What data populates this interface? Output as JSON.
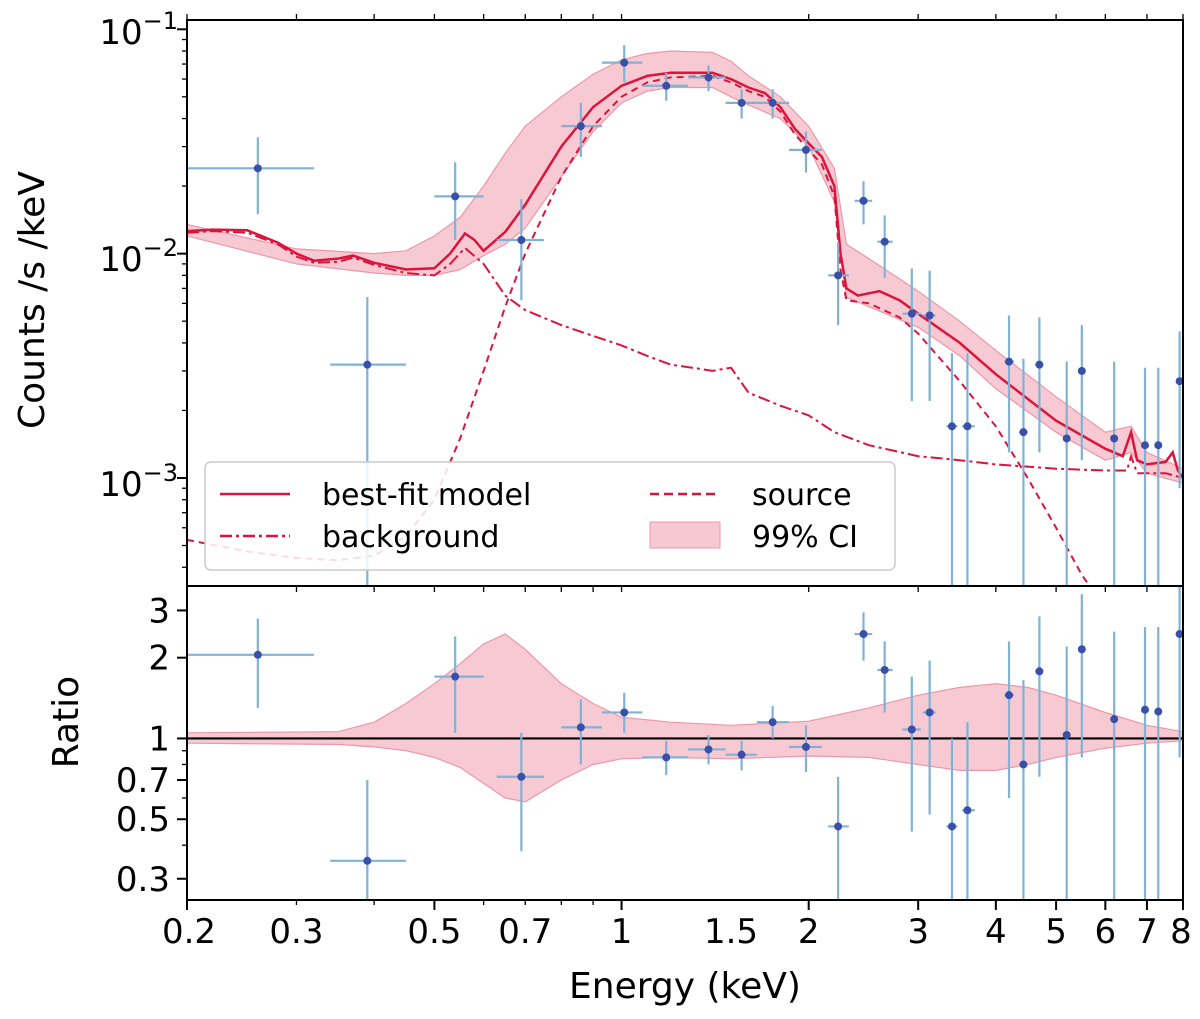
{
  "chart_data": [
    {
      "type": "line",
      "panel": "spectrum",
      "ylabel": "Counts /s /keV",
      "xscale": "log",
      "yscale": "log",
      "xlim": [
        0.2,
        8
      ],
      "ylim": [
        0.00033,
        0.11
      ],
      "y_tick_labels": [
        {
          "value": 0.1,
          "base": "10",
          "exp": "−1"
        },
        {
          "value": 0.01,
          "base": "10",
          "exp": "−2"
        },
        {
          "value": 0.001,
          "base": "10",
          "exp": "−3"
        }
      ],
      "legend": {
        "placement": "lower-left",
        "entries": [
          {
            "label": "best-fit model",
            "style": "solid"
          },
          {
            "label": "source",
            "style": "dashed"
          },
          {
            "label": "background",
            "style": "dashdot"
          },
          {
            "label": "99% CI",
            "style": "band"
          }
        ]
      },
      "colors": {
        "model": "#dc143c",
        "band": "#f4b6c2",
        "points": "#3a4fa8",
        "errorbars": "#7fb2d5"
      },
      "model": [
        [
          0.2,
          0.0126
        ],
        [
          0.22,
          0.0128
        ],
        [
          0.25,
          0.0127
        ],
        [
          0.28,
          0.0112
        ],
        [
          0.3,
          0.01
        ],
        [
          0.32,
          0.0093
        ],
        [
          0.35,
          0.0095
        ],
        [
          0.37,
          0.0098
        ],
        [
          0.4,
          0.0091
        ],
        [
          0.45,
          0.0085
        ],
        [
          0.5,
          0.0086
        ],
        [
          0.53,
          0.01
        ],
        [
          0.56,
          0.0123
        ],
        [
          0.58,
          0.0115
        ],
        [
          0.6,
          0.0103
        ],
        [
          0.65,
          0.0125
        ],
        [
          0.7,
          0.0165
        ],
        [
          0.8,
          0.03
        ],
        [
          0.9,
          0.045
        ],
        [
          1.0,
          0.056
        ],
        [
          1.1,
          0.062
        ],
        [
          1.2,
          0.064
        ],
        [
          1.4,
          0.064
        ],
        [
          1.5,
          0.06
        ],
        [
          1.6,
          0.055
        ],
        [
          1.7,
          0.052
        ],
        [
          1.8,
          0.045
        ],
        [
          1.9,
          0.036
        ],
        [
          2.0,
          0.031
        ],
        [
          2.1,
          0.027
        ],
        [
          2.2,
          0.02
        ],
        [
          2.25,
          0.01
        ],
        [
          2.3,
          0.007
        ],
        [
          2.4,
          0.0065
        ],
        [
          2.6,
          0.0068
        ],
        [
          2.8,
          0.0062
        ],
        [
          3.0,
          0.0054
        ],
        [
          3.5,
          0.004
        ],
        [
          4.0,
          0.0029
        ],
        [
          5.0,
          0.0018
        ],
        [
          6.0,
          0.00135
        ],
        [
          6.4,
          0.00125
        ],
        [
          6.6,
          0.0016
        ],
        [
          6.75,
          0.0012
        ],
        [
          7.0,
          0.00115
        ],
        [
          7.5,
          0.00118
        ],
        [
          7.7,
          0.0013
        ],
        [
          7.85,
          0.00108
        ],
        [
          8.0,
          0.001
        ]
      ],
      "source": [
        [
          0.2,
          0.00053
        ],
        [
          0.25,
          0.00047
        ],
        [
          0.3,
          0.00044
        ],
        [
          0.35,
          0.00043
        ],
        [
          0.4,
          0.00045
        ],
        [
          0.45,
          0.00055
        ],
        [
          0.5,
          0.0008
        ],
        [
          0.55,
          0.0015
        ],
        [
          0.6,
          0.003
        ],
        [
          0.65,
          0.0058
        ],
        [
          0.7,
          0.01
        ],
        [
          0.8,
          0.022
        ],
        [
          0.9,
          0.037
        ],
        [
          1.0,
          0.05
        ],
        [
          1.1,
          0.058
        ],
        [
          1.2,
          0.061
        ],
        [
          1.4,
          0.062
        ],
        [
          1.5,
          0.058
        ],
        [
          1.6,
          0.053
        ],
        [
          1.7,
          0.05
        ],
        [
          1.8,
          0.043
        ],
        [
          1.9,
          0.034
        ],
        [
          2.0,
          0.029
        ],
        [
          2.1,
          0.025
        ],
        [
          2.2,
          0.018
        ],
        [
          2.25,
          0.0085
        ],
        [
          2.3,
          0.0062
        ],
        [
          2.5,
          0.006
        ],
        [
          2.8,
          0.0052
        ],
        [
          3.0,
          0.0044
        ],
        [
          3.5,
          0.0027
        ],
        [
          4.0,
          0.0017
        ],
        [
          4.5,
          0.001
        ],
        [
          5.0,
          0.0006
        ],
        [
          5.5,
          0.00037
        ],
        [
          5.8,
          0.0003
        ]
      ],
      "background": [
        [
          0.2,
          0.0124
        ],
        [
          0.22,
          0.0126
        ],
        [
          0.25,
          0.0124
        ],
        [
          0.28,
          0.011
        ],
        [
          0.3,
          0.0097
        ],
        [
          0.32,
          0.0091
        ],
        [
          0.35,
          0.0092
        ],
        [
          0.37,
          0.0096
        ],
        [
          0.4,
          0.0089
        ],
        [
          0.45,
          0.0082
        ],
        [
          0.5,
          0.008
        ],
        [
          0.53,
          0.009
        ],
        [
          0.56,
          0.0106
        ],
        [
          0.6,
          0.009
        ],
        [
          0.65,
          0.0065
        ],
        [
          0.7,
          0.0056
        ],
        [
          0.8,
          0.0048
        ],
        [
          0.9,
          0.0043
        ],
        [
          1.0,
          0.0039
        ],
        [
          1.1,
          0.0035
        ],
        [
          1.2,
          0.0032
        ],
        [
          1.3,
          0.0031
        ],
        [
          1.4,
          0.003
        ],
        [
          1.5,
          0.0031
        ],
        [
          1.6,
          0.0024
        ],
        [
          1.8,
          0.0021
        ],
        [
          2.0,
          0.0019
        ],
        [
          2.2,
          0.0016
        ],
        [
          2.5,
          0.0014
        ],
        [
          3.0,
          0.00125
        ],
        [
          3.5,
          0.0012
        ],
        [
          4.0,
          0.00115
        ],
        [
          5.0,
          0.0011
        ],
        [
          6.0,
          0.00108
        ],
        [
          6.5,
          0.00108
        ],
        [
          6.6,
          0.00125
        ],
        [
          6.75,
          0.00105
        ],
        [
          7.5,
          0.00105
        ],
        [
          8.0,
          0.001
        ]
      ],
      "ci_band": {
        "x": [
          0.2,
          0.3,
          0.4,
          0.45,
          0.5,
          0.55,
          0.6,
          0.65,
          0.7,
          0.8,
          0.9,
          1.0,
          1.1,
          1.2,
          1.4,
          1.5,
          1.6,
          1.8,
          2.0,
          2.2,
          2.3,
          2.5,
          3.0,
          3.5,
          4.0,
          5.0,
          6.0,
          6.6,
          7.0,
          8.0
        ],
        "upper": [
          0.0135,
          0.0105,
          0.01,
          0.0103,
          0.012,
          0.0145,
          0.02,
          0.028,
          0.037,
          0.05,
          0.063,
          0.073,
          0.078,
          0.08,
          0.079,
          0.072,
          0.062,
          0.05,
          0.037,
          0.024,
          0.011,
          0.0095,
          0.0068,
          0.005,
          0.0037,
          0.0023,
          0.0016,
          0.0017,
          0.0013,
          0.0011
        ],
        "lower": [
          0.012,
          0.009,
          0.0082,
          0.008,
          0.008,
          0.0085,
          0.0098,
          0.011,
          0.013,
          0.022,
          0.035,
          0.047,
          0.053,
          0.055,
          0.055,
          0.05,
          0.046,
          0.04,
          0.03,
          0.017,
          0.0064,
          0.0058,
          0.0047,
          0.0035,
          0.0025,
          0.0016,
          0.0012,
          0.0013,
          0.00105,
          0.00095
        ]
      },
      "points": [
        {
          "x": 0.26,
          "y": 0.024,
          "xlo": 0.2,
          "xhi": 0.32,
          "ylo": 0.015,
          "yhi": 0.033
        },
        {
          "x": 0.39,
          "y": 0.0032,
          "xlo": 0.34,
          "xhi": 0.45,
          "ylo": 0.00033,
          "yhi": 0.0064
        },
        {
          "x": 0.54,
          "y": 0.018,
          "xlo": 0.5,
          "xhi": 0.6,
          "ylo": 0.0115,
          "yhi": 0.0255
        },
        {
          "x": 0.69,
          "y": 0.0115,
          "xlo": 0.63,
          "xhi": 0.75,
          "ylo": 0.0062,
          "yhi": 0.0175
        },
        {
          "x": 0.86,
          "y": 0.037,
          "xlo": 0.8,
          "xhi": 0.93,
          "ylo": 0.027,
          "yhi": 0.047
        },
        {
          "x": 1.01,
          "y": 0.071,
          "xlo": 0.93,
          "xhi": 1.08,
          "ylo": 0.058,
          "yhi": 0.085
        },
        {
          "x": 1.18,
          "y": 0.056,
          "xlo": 1.08,
          "xhi": 1.28,
          "ylo": 0.048,
          "yhi": 0.064
        },
        {
          "x": 1.38,
          "y": 0.061,
          "xlo": 1.28,
          "xhi": 1.47,
          "ylo": 0.053,
          "yhi": 0.069
        },
        {
          "x": 1.56,
          "y": 0.047,
          "xlo": 1.47,
          "xhi": 1.65,
          "ylo": 0.04,
          "yhi": 0.054
        },
        {
          "x": 1.75,
          "y": 0.047,
          "xlo": 1.65,
          "xhi": 1.86,
          "ylo": 0.04,
          "yhi": 0.054
        },
        {
          "x": 1.98,
          "y": 0.029,
          "xlo": 1.86,
          "xhi": 2.1,
          "ylo": 0.023,
          "yhi": 0.035
        },
        {
          "x": 2.23,
          "y": 0.008,
          "xlo": 2.15,
          "xhi": 2.32,
          "ylo": 0.0048,
          "yhi": 0.0112
        },
        {
          "x": 2.45,
          "y": 0.0172,
          "xlo": 2.37,
          "xhi": 2.53,
          "ylo": 0.0135,
          "yhi": 0.021
        },
        {
          "x": 2.65,
          "y": 0.0113,
          "xlo": 2.58,
          "xhi": 2.73,
          "ylo": 0.0078,
          "yhi": 0.0148
        },
        {
          "x": 2.93,
          "y": 0.0054,
          "xlo": 2.83,
          "xhi": 3.03,
          "ylo": 0.0022,
          "yhi": 0.0086
        },
        {
          "x": 3.13,
          "y": 0.0053,
          "xlo": 3.05,
          "xhi": 3.2,
          "ylo": 0.0022,
          "yhi": 0.0084
        },
        {
          "x": 3.4,
          "y": 0.0017,
          "xlo": 3.33,
          "xhi": 3.47,
          "ylo": 0.00033,
          "yhi": 0.0036
        },
        {
          "x": 3.6,
          "y": 0.0017,
          "xlo": 3.53,
          "xhi": 3.7,
          "ylo": 0.00033,
          "yhi": 0.0036
        },
        {
          "x": 4.2,
          "y": 0.0033,
          "xlo": 4.13,
          "xhi": 4.28,
          "ylo": 0.0013,
          "yhi": 0.0053
        },
        {
          "x": 4.43,
          "y": 0.0016,
          "xlo": 4.36,
          "xhi": 4.5,
          "ylo": 0.00033,
          "yhi": 0.0034
        },
        {
          "x": 4.7,
          "y": 0.0032,
          "xlo": 4.63,
          "xhi": 4.77,
          "ylo": 0.0013,
          "yhi": 0.0052
        },
        {
          "x": 5.2,
          "y": 0.0015,
          "xlo": 5.13,
          "xhi": 5.27,
          "ylo": 0.00033,
          "yhi": 0.0033
        },
        {
          "x": 5.5,
          "y": 0.003,
          "xlo": 5.43,
          "xhi": 5.57,
          "ylo": 0.0012,
          "yhi": 0.0048
        },
        {
          "x": 6.2,
          "y": 0.0015,
          "xlo": 6.13,
          "xhi": 6.27,
          "ylo": 0.00033,
          "yhi": 0.0033
        },
        {
          "x": 6.95,
          "y": 0.0014,
          "xlo": 6.88,
          "xhi": 7.02,
          "ylo": 0.00033,
          "yhi": 0.0031
        },
        {
          "x": 7.3,
          "y": 0.0014,
          "xlo": 7.23,
          "xhi": 7.37,
          "ylo": 0.00033,
          "yhi": 0.0031
        },
        {
          "x": 7.9,
          "y": 0.0027,
          "xlo": 7.83,
          "xhi": 7.97,
          "ylo": 0.0009,
          "yhi": 0.0045
        }
      ]
    },
    {
      "type": "scatter",
      "panel": "ratio",
      "xlabel": "Energy (keV)",
      "ylabel": "Ratio",
      "xscale": "log",
      "yscale": "log",
      "xlim": [
        0.2,
        8
      ],
      "ylim": [
        0.25,
        3.7
      ],
      "x_ticks": [
        0.2,
        0.3,
        0.5,
        0.7,
        1,
        1.5,
        2,
        3,
        4,
        5,
        6,
        7,
        8
      ],
      "x_tick_labels": [
        "0.2",
        "0.3",
        "0.5",
        "0.7",
        "1",
        "1.5",
        "2",
        "3",
        "4",
        "5",
        "6",
        "7",
        "8"
      ],
      "y_ticks": [
        0.3,
        0.5,
        0.7,
        1,
        2,
        3
      ],
      "y_tick_labels": [
        "0.3",
        "0.5",
        "0.7",
        "1",
        "2",
        "3"
      ],
      "reference_line": 1,
      "ci_band": {
        "x": [
          0.2,
          0.35,
          0.4,
          0.45,
          0.5,
          0.55,
          0.6,
          0.65,
          0.7,
          0.8,
          0.9,
          1.0,
          1.2,
          1.5,
          2.0,
          2.5,
          3.0,
          3.5,
          4.0,
          4.5,
          5.0,
          6.0,
          7.0,
          8.0
        ],
        "upper": [
          1.05,
          1.06,
          1.15,
          1.35,
          1.6,
          1.9,
          2.25,
          2.45,
          2.15,
          1.6,
          1.35,
          1.2,
          1.15,
          1.12,
          1.16,
          1.3,
          1.45,
          1.55,
          1.6,
          1.55,
          1.45,
          1.25,
          1.12,
          1.06
        ],
        "lower": [
          0.96,
          0.95,
          0.93,
          0.9,
          0.85,
          0.78,
          0.68,
          0.6,
          0.58,
          0.7,
          0.8,
          0.84,
          0.85,
          0.84,
          0.86,
          0.85,
          0.8,
          0.76,
          0.76,
          0.8,
          0.85,
          0.92,
          0.96,
          0.98
        ]
      },
      "points": [
        {
          "x": 0.26,
          "y": 2.05,
          "xlo": 0.2,
          "xhi": 0.32,
          "ylo": 1.3,
          "yhi": 2.8
        },
        {
          "x": 0.39,
          "y": 0.35,
          "xlo": 0.34,
          "xhi": 0.45,
          "ylo": 0.25,
          "yhi": 0.7
        },
        {
          "x": 0.54,
          "y": 1.7,
          "xlo": 0.5,
          "xhi": 0.6,
          "ylo": 1.05,
          "yhi": 2.4
        },
        {
          "x": 0.69,
          "y": 0.72,
          "xlo": 0.63,
          "xhi": 0.75,
          "ylo": 0.38,
          "yhi": 1.05
        },
        {
          "x": 0.86,
          "y": 1.1,
          "xlo": 0.8,
          "xhi": 0.93,
          "ylo": 0.8,
          "yhi": 1.4
        },
        {
          "x": 1.01,
          "y": 1.25,
          "xlo": 0.93,
          "xhi": 1.08,
          "ylo": 1.05,
          "yhi": 1.48
        },
        {
          "x": 1.18,
          "y": 0.85,
          "xlo": 1.08,
          "xhi": 1.28,
          "ylo": 0.73,
          "yhi": 0.98
        },
        {
          "x": 1.38,
          "y": 0.91,
          "xlo": 1.28,
          "xhi": 1.47,
          "ylo": 0.8,
          "yhi": 1.03
        },
        {
          "x": 1.56,
          "y": 0.87,
          "xlo": 1.47,
          "xhi": 1.65,
          "ylo": 0.76,
          "yhi": 0.98
        },
        {
          "x": 1.75,
          "y": 1.15,
          "xlo": 1.65,
          "xhi": 1.86,
          "ylo": 1.0,
          "yhi": 1.32
        },
        {
          "x": 1.98,
          "y": 0.93,
          "xlo": 1.86,
          "xhi": 2.1,
          "ylo": 0.75,
          "yhi": 1.12
        },
        {
          "x": 2.23,
          "y": 0.47,
          "xlo": 2.15,
          "xhi": 2.32,
          "ylo": 0.25,
          "yhi": 0.72
        },
        {
          "x": 2.45,
          "y": 2.45,
          "xlo": 2.37,
          "xhi": 2.53,
          "ylo": 1.95,
          "yhi": 2.95
        },
        {
          "x": 2.65,
          "y": 1.8,
          "xlo": 2.58,
          "xhi": 2.73,
          "ylo": 1.25,
          "yhi": 2.3
        },
        {
          "x": 2.93,
          "y": 1.08,
          "xlo": 2.83,
          "xhi": 3.03,
          "ylo": 0.45,
          "yhi": 1.7
        },
        {
          "x": 3.13,
          "y": 1.25,
          "xlo": 3.05,
          "xhi": 3.2,
          "ylo": 0.52,
          "yhi": 1.95
        },
        {
          "x": 3.4,
          "y": 0.47,
          "xlo": 3.33,
          "xhi": 3.47,
          "ylo": 0.25,
          "yhi": 1.0
        },
        {
          "x": 3.6,
          "y": 0.54,
          "xlo": 3.53,
          "xhi": 3.7,
          "ylo": 0.25,
          "yhi": 1.15
        },
        {
          "x": 4.2,
          "y": 1.45,
          "xlo": 4.13,
          "xhi": 4.28,
          "ylo": 0.6,
          "yhi": 2.3
        },
        {
          "x": 4.43,
          "y": 0.8,
          "xlo": 4.36,
          "xhi": 4.5,
          "ylo": 0.25,
          "yhi": 1.65
        },
        {
          "x": 4.7,
          "y": 1.78,
          "xlo": 4.63,
          "xhi": 4.77,
          "ylo": 0.72,
          "yhi": 2.85
        },
        {
          "x": 5.2,
          "y": 1.03,
          "xlo": 5.13,
          "xhi": 5.27,
          "ylo": 0.25,
          "yhi": 2.2
        },
        {
          "x": 5.5,
          "y": 2.15,
          "xlo": 5.43,
          "xhi": 5.57,
          "ylo": 0.85,
          "yhi": 3.45
        },
        {
          "x": 6.2,
          "y": 1.18,
          "xlo": 6.13,
          "xhi": 6.27,
          "ylo": 0.25,
          "yhi": 2.5
        },
        {
          "x": 6.95,
          "y": 1.28,
          "xlo": 6.88,
          "xhi": 7.02,
          "ylo": 0.25,
          "yhi": 2.6
        },
        {
          "x": 7.3,
          "y": 1.26,
          "xlo": 7.23,
          "xhi": 7.37,
          "ylo": 0.25,
          "yhi": 2.6
        },
        {
          "x": 7.9,
          "y": 2.45,
          "xlo": 7.83,
          "xhi": 7.97,
          "ylo": 0.85,
          "yhi": 3.7
        }
      ]
    }
  ]
}
